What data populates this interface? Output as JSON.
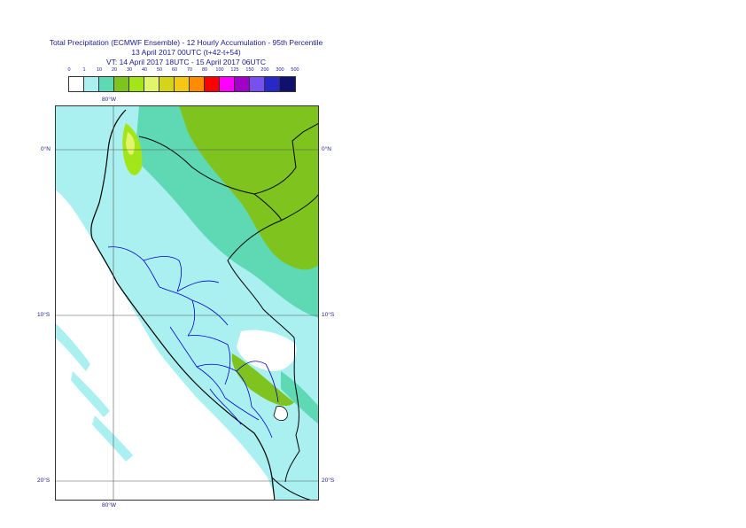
{
  "title": {
    "line1": "Total Precipitation (ECMWF Ensemble) - 12 Hourly Accumulation - 95th Percentile",
    "line2": "13 April 2017 00UTC (t+42-t+54)",
    "line3": "VT: 14 April 2017 18UTC - 15 April 2017 06UTC"
  },
  "legend": {
    "labels": [
      "0",
      "1",
      "10",
      "20",
      "30",
      "40",
      "50",
      "60",
      "70",
      "80",
      "100",
      "125",
      "150",
      "200",
      "300",
      "500"
    ],
    "colors": [
      "#ffffff",
      "#aaf0f0",
      "#5fd9b4",
      "#7fc41e",
      "#a2e61a",
      "#e0f569",
      "#d4d41a",
      "#f5c814",
      "#ff8c00",
      "#ff0000",
      "#ff00ff",
      "#a000c8",
      "#7850f0",
      "#2828c8",
      "#101070"
    ]
  },
  "map": {
    "top_lon_label": "80°W",
    "bottom_lon_label": "80°W",
    "lat_labels_left": [
      "0°N",
      "10°S",
      "20°S"
    ],
    "lat_labels_right": [
      "0°N",
      "10°S",
      "20°S"
    ],
    "colors": {
      "ocean": "#ffffff",
      "band1": "#aaf0f0",
      "band2": "#5fd9b4",
      "band3": "#7fc41e",
      "band4": "#a2e61a",
      "band5": "#e0f569",
      "border": "#000000",
      "admin": "#0000cc",
      "grid": "#555555"
    }
  }
}
